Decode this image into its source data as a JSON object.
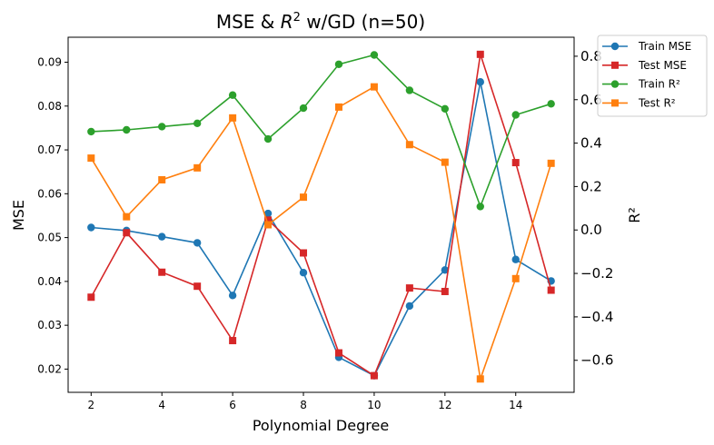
{
  "chart_data": {
    "type": "line",
    "title_prefix": "MSE & ",
    "title_var": "R",
    "title_sup": "2",
    "title_suffix": " w/GD (n=50)",
    "xlabel": "Polynomial Degree",
    "ylabel_left": "MSE",
    "ylabel_right": "R²",
    "x": [
      2,
      3,
      4,
      5,
      6,
      7,
      8,
      9,
      10,
      11,
      12,
      13,
      14,
      15
    ],
    "xlim": [
      1.35,
      15.65
    ],
    "ylim_left": [
      0.0147,
      0.0957
    ],
    "ylim_right": [
      -0.7475,
      0.8875
    ],
    "xticks": [
      2,
      4,
      6,
      8,
      10,
      12,
      14
    ],
    "yticks_left": [
      0.02,
      0.03,
      0.04,
      0.05,
      0.06,
      0.07,
      0.08,
      0.09
    ],
    "yticks_right": [
      -0.6,
      -0.4,
      -0.2,
      0.0,
      0.2,
      0.4,
      0.6,
      0.8
    ],
    "yticks_left_labels": [
      "0.02",
      "0.03",
      "0.04",
      "0.05",
      "0.06",
      "0.07",
      "0.08",
      "0.09"
    ],
    "yticks_right_labels": [
      "−0.6",
      "−0.4",
      "−0.2",
      "0.0",
      "0.2",
      "0.4",
      "0.6",
      "0.8"
    ],
    "series": [
      {
        "name": "Train MSE",
        "axis": "left",
        "marker": "circle",
        "color": "#1f77b4",
        "values": [
          0.0523,
          0.0516,
          0.0502,
          0.0488,
          0.0368,
          0.0555,
          0.042,
          0.0227,
          0.0185,
          0.0344,
          0.0426,
          0.0855,
          0.045,
          0.0401
        ]
      },
      {
        "name": "Test MSE",
        "axis": "left",
        "marker": "square",
        "color": "#d62728",
        "values": [
          0.0364,
          0.0511,
          0.0421,
          0.0389,
          0.0265,
          0.054,
          0.0465,
          0.0237,
          0.0185,
          0.0385,
          0.0377,
          0.0918,
          0.0671,
          0.038
        ]
      },
      {
        "name": "Train R²",
        "axis": "right",
        "marker": "circle",
        "color": "#2ca02c",
        "values": [
          0.453,
          0.461,
          0.476,
          0.491,
          0.621,
          0.419,
          0.561,
          0.763,
          0.806,
          0.643,
          0.558,
          0.108,
          0.53,
          0.581
        ]
      },
      {
        "name": "Test R²",
        "axis": "right",
        "marker": "square",
        "color": "#ff7f0e",
        "values": [
          0.331,
          0.061,
          0.231,
          0.286,
          0.516,
          0.024,
          0.151,
          0.566,
          0.659,
          0.393,
          0.312,
          -0.686,
          -0.224,
          0.307
        ]
      }
    ],
    "legend_position": "outside-top-right",
    "grid": false
  }
}
